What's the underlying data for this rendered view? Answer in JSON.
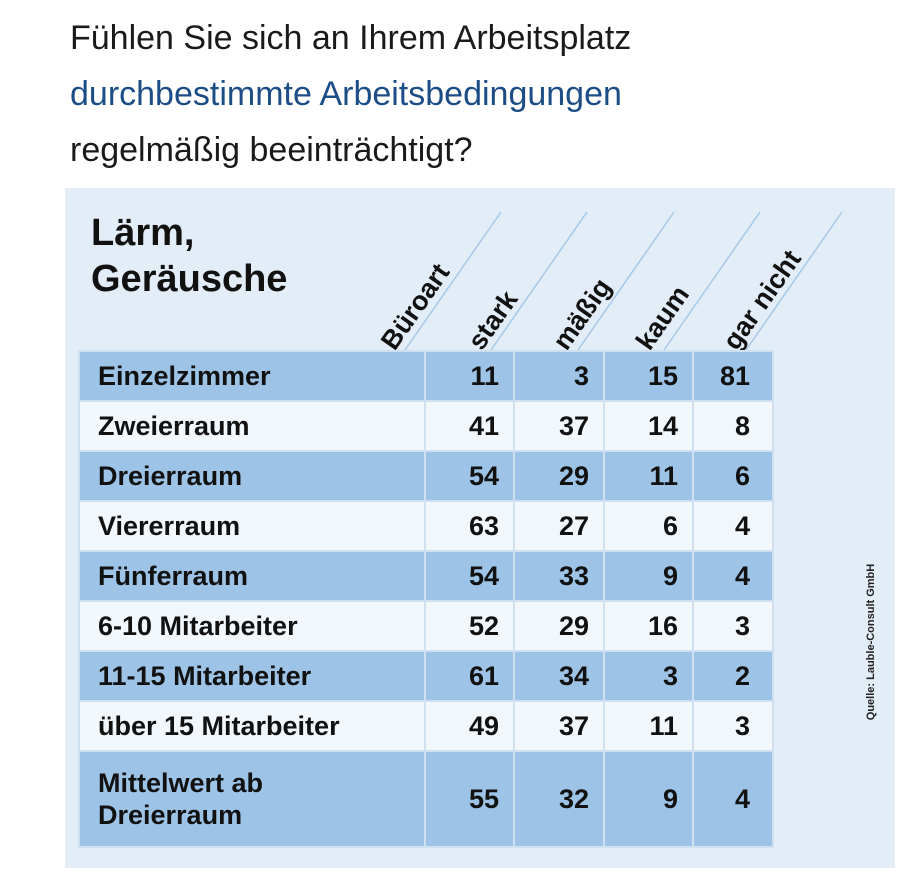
{
  "question": {
    "line1": "Fühlen Sie sich an Ihrem Arbeitsplatz",
    "line2": "durchbestimmte Arbeitsbedingungen",
    "line3": "regelmäßig beeinträchtigt?"
  },
  "colors": {
    "question_text": "#1a1a1a",
    "question_highlight": "#1c4d86",
    "panel_background": "#e2edf8",
    "row_shaded": "#9dc3e6",
    "row_light": "#f2f7fc"
  },
  "source": "Quelle: Lauble-Consult GmbH",
  "chart_data": {
    "type": "table",
    "title_line1": "Lärm,",
    "title_line2": "Geräusche",
    "row_header": "Büroart",
    "columns": [
      "stark",
      "mäßig",
      "kaum",
      "gar nicht"
    ],
    "rows": [
      {
        "label": "Einzelzimmer",
        "values": [
          11,
          3,
          15,
          81
        ]
      },
      {
        "label": "Zweierraum",
        "values": [
          41,
          37,
          14,
          8
        ]
      },
      {
        "label": "Dreierraum",
        "values": [
          54,
          29,
          11,
          6
        ]
      },
      {
        "label": "Viererraum",
        "values": [
          63,
          27,
          6,
          4
        ]
      },
      {
        "label": "Fünferraum",
        "values": [
          54,
          33,
          9,
          4
        ]
      },
      {
        "label": "6-10 Mitarbeiter",
        "values": [
          52,
          29,
          16,
          3
        ]
      },
      {
        "label": "11-15 Mitarbeiter",
        "values": [
          61,
          34,
          3,
          2
        ]
      },
      {
        "label": "über 15 Mitarbeiter",
        "values": [
          49,
          37,
          11,
          3
        ]
      },
      {
        "label_line1": "Mittelwert ab",
        "label_line2": "Dreierraum",
        "values": [
          55,
          32,
          9,
          4
        ]
      }
    ]
  }
}
